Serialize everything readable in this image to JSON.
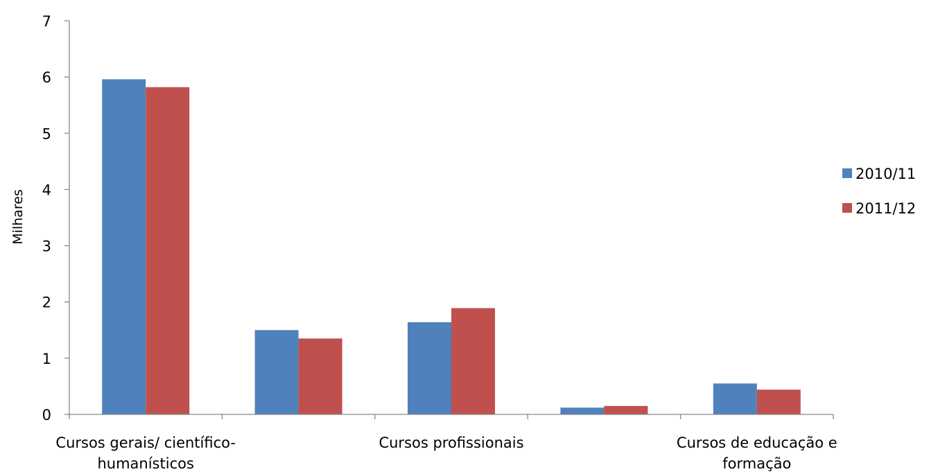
{
  "chart_data": {
    "type": "bar",
    "title": "",
    "xlabel": "",
    "ylabel": "Milhares",
    "ylim": [
      0,
      7
    ],
    "yticks": [
      "0",
      "1",
      "2",
      "3",
      "4",
      "5",
      "6",
      "7"
    ],
    "categories": [
      "Cursos gerais/ científico-humanísticos",
      "",
      "Cursos profissionais",
      "",
      "Cursos de educação e formação"
    ],
    "category_label_lines": [
      [
        "Cursos gerais/ científico-",
        "humanísticos"
      ],
      [],
      [
        "Cursos profissionais"
      ],
      [],
      [
        "Cursos de educação e",
        "formação"
      ]
    ],
    "series": [
      {
        "name": "2010/11",
        "color": "#4F81BD",
        "values": [
          5.96,
          1.5,
          1.64,
          0.12,
          0.55
        ]
      },
      {
        "name": "2011/12",
        "color": "#C0504D",
        "values": [
          5.82,
          1.35,
          1.89,
          0.15,
          0.44
        ]
      }
    ],
    "grid": false,
    "legend_position": "right"
  }
}
